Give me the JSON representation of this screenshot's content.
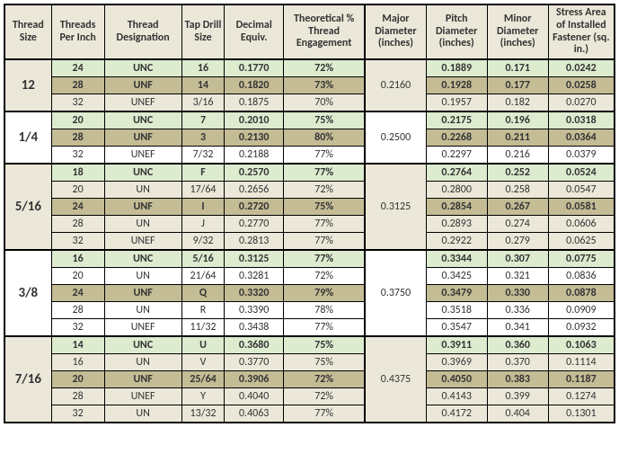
{
  "headers": {
    "size": "Thread Size",
    "tpi": "Threads Per Inch",
    "desig": "Thread Designation",
    "drill": "Tap Drill Size",
    "dec": "Decimal Equiv.",
    "eng": "Theoretical % Thread Engagement",
    "maj": "Major Diameter (inches)",
    "pitch": "Pitch Diameter (inches)",
    "minor": "Minor Diameter (inches)",
    "stress": "Stress Area of Installed Fastener (sq. in.)"
  },
  "groups": [
    {
      "size": "12",
      "major": "0.2160",
      "size_bg": "#ebe8d9",
      "rows": [
        {
          "cls": "row-unc",
          "tpi": "24",
          "desig": "UNC",
          "drill": "16",
          "dec": "0.1770",
          "eng": "72%",
          "pitch": "0.1889",
          "minor": "0.171",
          "stress": "0.0242"
        },
        {
          "cls": "row-unf",
          "tpi": "28",
          "desig": "UNF",
          "drill": "14",
          "dec": "0.1820",
          "eng": "73%",
          "pitch": "0.1928",
          "minor": "0.177",
          "stress": "0.0258"
        },
        {
          "cls": "row-plain-a",
          "tpi": "32",
          "desig": "UNEF",
          "drill": "3/16",
          "dec": "0.1875",
          "eng": "70%",
          "pitch": "0.1957",
          "minor": "0.182",
          "stress": "0.0270"
        }
      ]
    },
    {
      "size": "1/4",
      "major": "0.2500",
      "size_bg": "#ffffff",
      "rows": [
        {
          "cls": "row-unc",
          "tpi": "20",
          "desig": "UNC",
          "drill": "7",
          "dec": "0.2010",
          "eng": "75%",
          "pitch": "0.2175",
          "minor": "0.196",
          "stress": "0.0318"
        },
        {
          "cls": "row-unf",
          "tpi": "28",
          "desig": "UNF",
          "drill": "3",
          "dec": "0.2130",
          "eng": "80%",
          "pitch": "0.2268",
          "minor": "0.211",
          "stress": "0.0364"
        },
        {
          "cls": "row-plain-b",
          "tpi": "32",
          "desig": "UNEF",
          "drill": "7/32",
          "dec": "0.2188",
          "eng": "77%",
          "pitch": "0.2297",
          "minor": "0.216",
          "stress": "0.0379"
        }
      ]
    },
    {
      "size": "5/16",
      "major": "0.3125",
      "size_bg": "#ebe8d9",
      "rows": [
        {
          "cls": "row-unc",
          "tpi": "18",
          "desig": "UNC",
          "drill": "F",
          "dec": "0.2570",
          "eng": "77%",
          "pitch": "0.2764",
          "minor": "0.252",
          "stress": "0.0524"
        },
        {
          "cls": "row-plain-a",
          "tpi": "20",
          "desig": "UN",
          "drill": "17/64",
          "dec": "0.2656",
          "eng": "72%",
          "pitch": "0.2800",
          "minor": "0.258",
          "stress": "0.0547"
        },
        {
          "cls": "row-unf",
          "tpi": "24",
          "desig": "UNF",
          "drill": "I",
          "dec": "0.2720",
          "eng": "75%",
          "pitch": "0.2854",
          "minor": "0.267",
          "stress": "0.0581"
        },
        {
          "cls": "row-plain-a",
          "tpi": "28",
          "desig": "UN",
          "drill": "J",
          "dec": "0.2770",
          "eng": "77%",
          "pitch": "0.2893",
          "minor": "0.274",
          "stress": "0.0606"
        },
        {
          "cls": "row-plain-a",
          "tpi": "32",
          "desig": "UNEF",
          "drill": "9/32",
          "dec": "0.2813",
          "eng": "77%",
          "pitch": "0.2922",
          "minor": "0.279",
          "stress": "0.0625"
        }
      ]
    },
    {
      "size": "3/8",
      "major": "0.3750",
      "size_bg": "#ffffff",
      "rows": [
        {
          "cls": "row-unc",
          "tpi": "16",
          "desig": "UNC",
          "drill": "5/16",
          "dec": "0.3125",
          "eng": "77%",
          "pitch": "0.3344",
          "minor": "0.307",
          "stress": "0.0775"
        },
        {
          "cls": "row-plain-b",
          "tpi": "20",
          "desig": "UN",
          "drill": "21/64",
          "dec": "0.3281",
          "eng": "72%",
          "pitch": "0.3425",
          "minor": "0.321",
          "stress": "0.0836"
        },
        {
          "cls": "row-unf",
          "tpi": "24",
          "desig": "UNF",
          "drill": "Q",
          "dec": "0.3320",
          "eng": "79%",
          "pitch": "0.3479",
          "minor": "0.330",
          "stress": "0.0878"
        },
        {
          "cls": "row-plain-b",
          "tpi": "28",
          "desig": "UN",
          "drill": "R",
          "dec": "0.3390",
          "eng": "78%",
          "pitch": "0.3518",
          "minor": "0.336",
          "stress": "0.0909"
        },
        {
          "cls": "row-plain-b",
          "tpi": "32",
          "desig": "UNEF",
          "drill": "11/32",
          "dec": "0.3438",
          "eng": "77%",
          "pitch": "0.3547",
          "minor": "0.341",
          "stress": "0.0932"
        }
      ]
    },
    {
      "size": "7/16",
      "major": "0.4375",
      "size_bg": "#ebe8d9",
      "rows": [
        {
          "cls": "row-unc",
          "tpi": "14",
          "desig": "UNC",
          "drill": "U",
          "dec": "0.3680",
          "eng": "75%",
          "pitch": "0.3911",
          "minor": "0.360",
          "stress": "0.1063"
        },
        {
          "cls": "row-plain-a",
          "tpi": "16",
          "desig": "UN",
          "drill": "V",
          "dec": "0.3770",
          "eng": "75%",
          "pitch": "0.3969",
          "minor": "0.370",
          "stress": "0.1114"
        },
        {
          "cls": "row-unf",
          "tpi": "20",
          "desig": "UNF",
          "drill": "25/64",
          "dec": "0.3906",
          "eng": "72%",
          "pitch": "0.4050",
          "minor": "0.383",
          "stress": "0.1187"
        },
        {
          "cls": "row-plain-a",
          "tpi": "28",
          "desig": "UNEF",
          "drill": "Y",
          "dec": "0.4040",
          "eng": "72%",
          "pitch": "0.4143",
          "minor": "0.399",
          "stress": "0.1274"
        },
        {
          "cls": "row-plain-a",
          "tpi": "32",
          "desig": "UN",
          "drill": "13/32",
          "dec": "0.4063",
          "eng": "77%",
          "pitch": "0.4172",
          "minor": "0.404",
          "stress": "0.1301"
        }
      ]
    }
  ]
}
